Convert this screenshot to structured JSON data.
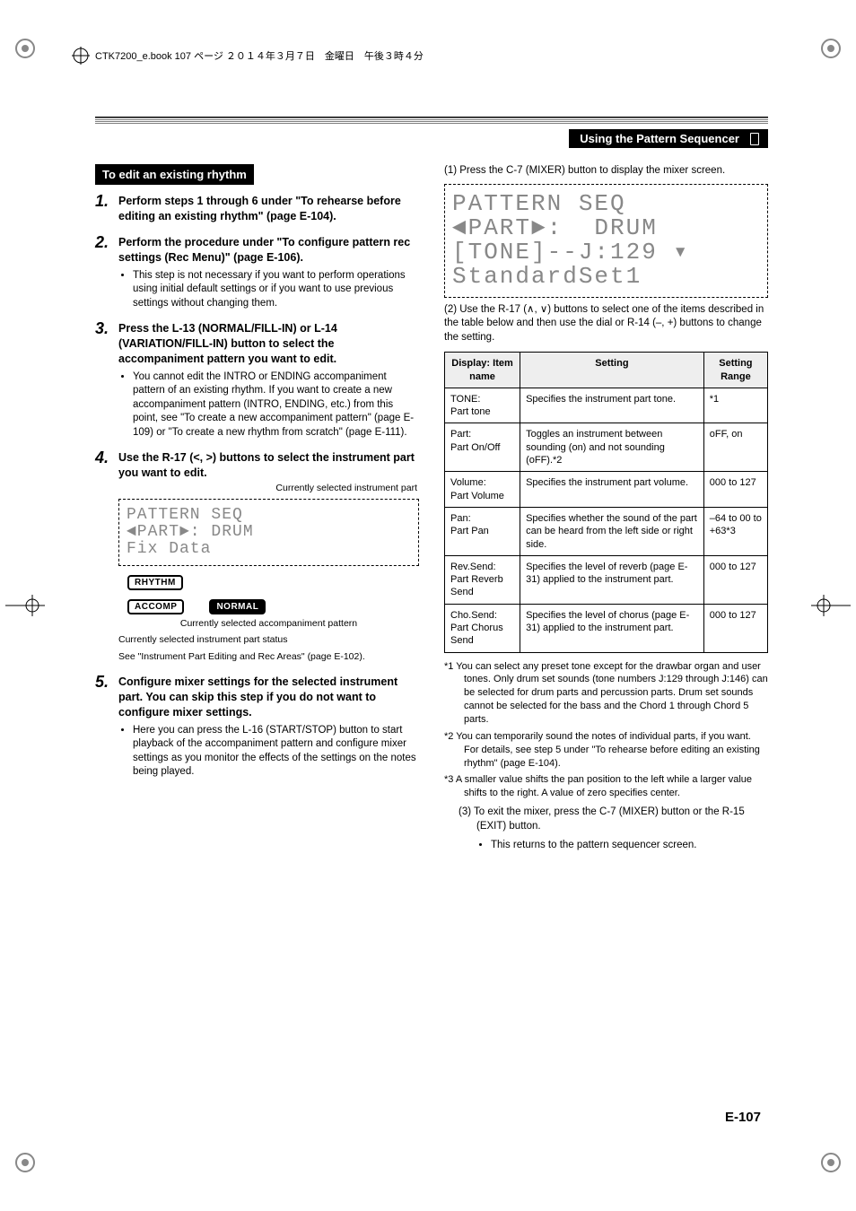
{
  "book_header": "CTK7200_e.book  107 ページ  ２０１４年３月７日　金曜日　午後３時４分",
  "section_bar": "Using the Pattern Sequencer",
  "page_number": "E-107",
  "left": {
    "heading": "To edit an existing rhythm",
    "steps": [
      {
        "title": "Perform steps 1 through 6 under \"To rehearse before editing an existing rhythm\" (page E-104)."
      },
      {
        "title": "Perform the procedure under \"To configure pattern rec settings (Rec Menu)\" (page E-106).",
        "bullets": [
          "This step is not necessary if you want to perform operations using initial default settings or if you want to use previous settings without changing them."
        ]
      },
      {
        "title": "Press the L-13 (NORMAL/FILL-IN) or L-14 (VARIATION/FILL-IN) button to select the accompaniment pattern you want to edit.",
        "bullets": [
          "You cannot edit the INTRO or ENDING accompaniment pattern of an existing rhythm. If you want to create a new accompaniment pattern (INTRO, ENDING, etc.) from this point, see \"To create a new accompaniment pattern\" (page E-109) or \"To create a new rhythm from scratch\" (page E-111)."
        ]
      },
      {
        "title": "Use the R-17 (<, >) buttons to select the instrument part you want to edit.",
        "lcd_caption_top": "Currently selected instrument part",
        "lcd_lines": "PATTERN SEQ\n◄PART►: DRUM\nFix Data",
        "badges": {
          "rhythm": "RHYTHM",
          "accomp": "ACCOMP",
          "normal": "NORMAL"
        },
        "lcd_caption_bottom": "Currently selected accompaniment pattern",
        "notes": [
          "Currently selected instrument part status",
          "See \"Instrument Part Editing and Rec Areas\" (page E-102)."
        ]
      },
      {
        "title": "Configure mixer settings for the selected instrument part. You can skip this step if you do not want to configure mixer settings.",
        "bullets": [
          "Here you can press the L-16 (START/STOP) button to start playback of the accompaniment pattern and configure mixer settings as you monitor the effects of the settings on the notes being played."
        ]
      }
    ]
  },
  "right": {
    "step1": "(1) Press the C-7 (MIXER) button to display the mixer screen.",
    "lcd_lines": "PATTERN SEQ\n◄PART►:  DRUM\n[TONE]--J:129 ▾\nStandardSet1",
    "step2": "(2) Use the R-17 (∧, ∨) buttons to select one of the items described in the table below and then use the dial or R-14 (–, +) buttons to change the setting.",
    "table": {
      "headers": [
        "Display: Item name",
        "Setting",
        "Setting Range"
      ],
      "rows": [
        [
          "TONE:\nPart tone",
          "Specifies the instrument part tone.",
          "*1"
        ],
        [
          "Part:\nPart On/Off",
          "Toggles an instrument between sounding (on) and not sounding (oFF).*2",
          "oFF, on"
        ],
        [
          "Volume:\nPart Volume",
          "Specifies the instrument part volume.",
          "000 to 127"
        ],
        [
          "Pan:\nPart Pan",
          "Specifies whether the sound of the part can be heard from the left side or right side.",
          "–64 to 00 to +63*3"
        ],
        [
          "Rev.Send:\nPart Reverb Send",
          "Specifies the level of reverb (page E-31) applied to the instrument part.",
          "000 to 127"
        ],
        [
          "Cho.Send:\nPart Chorus Send",
          "Specifies the level of chorus (page E-31) applied to the instrument part.",
          "000 to 127"
        ]
      ]
    },
    "footnotes": [
      "*1  You can select any preset tone except for the drawbar organ and user tones. Only drum set sounds (tone numbers J:129 through J:146) can be selected for drum parts and percussion parts. Drum set sounds cannot be selected for the bass and the Chord 1 through Chord 5 parts.",
      "*2  You can temporarily sound the notes of individual parts, if you want. For details, see step 5 under \"To rehearse before editing an existing rhythm\" (page E-104).",
      "*3  A smaller value shifts the pan position to the left while a larger value shifts to the right. A value of zero specifies center."
    ],
    "step3": "(3) To exit the mixer, press the C-7 (MIXER) button or the R-15 (EXIT) button.",
    "step3_bullet": "This returns to the pattern sequencer screen."
  }
}
